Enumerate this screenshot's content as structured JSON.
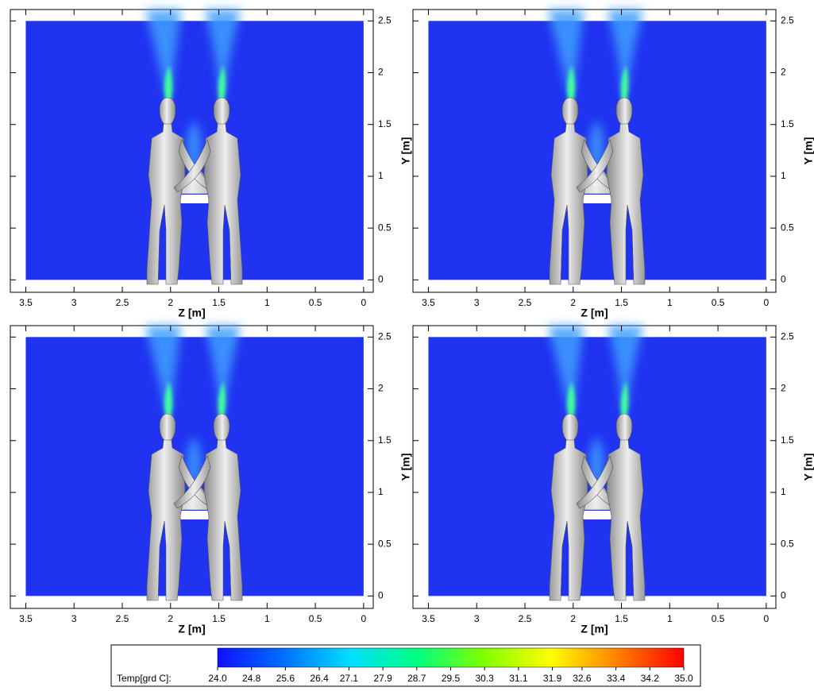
{
  "chart_data": [
    {
      "type": "contour",
      "xlabel": "Z [m]",
      "ylabel": "Y [m]",
      "xlim": [
        3.66,
        -0.1
      ],
      "ylim": [
        -0.12,
        2.61
      ],
      "xticks": [
        3.5,
        3,
        2.5,
        2,
        1.5,
        1,
        0.5,
        0
      ],
      "yticks": [
        0,
        0.5,
        1,
        1.5,
        2,
        2.5
      ]
    },
    {
      "type": "contour",
      "xlabel": "Z [m]",
      "ylabel": "Y [m]",
      "xlim": [
        3.66,
        -0.1
      ],
      "ylim": [
        -0.12,
        2.61
      ],
      "xticks": [
        3.5,
        3,
        2.5,
        2,
        1.5,
        1,
        0.5,
        0
      ],
      "yticks": [
        0,
        0.5,
        1,
        1.5,
        2,
        2.5
      ]
    },
    {
      "type": "contour",
      "xlabel": "Z [m]",
      "ylabel": "Y [m]",
      "xlim": [
        3.66,
        -0.1
      ],
      "ylim": [
        -0.12,
        2.61
      ],
      "xticks": [
        3.5,
        3,
        2.5,
        2,
        1.5,
        1,
        0.5,
        0
      ],
      "yticks": [
        0,
        0.5,
        1,
        1.5,
        2,
        2.5
      ]
    },
    {
      "type": "contour",
      "xlabel": "Z [m]",
      "ylabel": "Y [m]",
      "xlim": [
        3.66,
        -0.1
      ],
      "ylim": [
        -0.12,
        2.61
      ],
      "xticks": [
        3.5,
        3,
        2.5,
        2,
        1.5,
        1,
        0.5,
        0
      ],
      "yticks": [
        0,
        0.5,
        1,
        1.5,
        2,
        2.5
      ]
    }
  ],
  "colorbar": {
    "label": "Temp[grd C]:",
    "colors": [
      "#1010ff",
      "#0070ff",
      "#00e0ff",
      "#00ff80",
      "#80ff00",
      "#ffff00",
      "#ff8000",
      "#ff0000"
    ],
    "ticks": [
      {
        "value": 24.0,
        "label": "24.0"
      },
      {
        "value": 24.8,
        "label": "24.8"
      },
      {
        "value": 25.6,
        "label": "25.6"
      },
      {
        "value": 26.4,
        "label": "26.4"
      },
      {
        "value": 27.1,
        "label": "27.1"
      },
      {
        "value": 27.9,
        "label": "27.9"
      },
      {
        "value": 28.7,
        "label": "28.7"
      },
      {
        "value": 29.5,
        "label": "29.5"
      },
      {
        "value": 30.3,
        "label": "30.3"
      },
      {
        "value": 31.1,
        "label": "31.1"
      },
      {
        "value": 31.9,
        "label": "31.9"
      },
      {
        "value": 32.6,
        "label": "32.6"
      },
      {
        "value": 33.4,
        "label": "33.4"
      },
      {
        "value": 34.2,
        "label": "34.2"
      },
      {
        "value": 35.0,
        "label": "35.0"
      }
    ]
  }
}
